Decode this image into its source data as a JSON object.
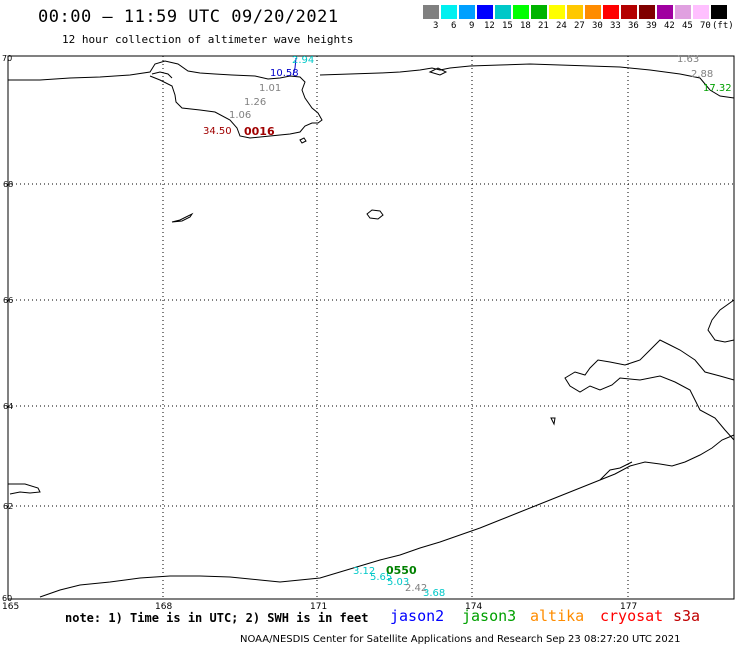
{
  "header": {
    "title": "00:00 — 11:59 UTC 09/20/2021",
    "subtitle": "12 hour collection of altimeter wave heights"
  },
  "legend": {
    "colors": [
      "#808080",
      "#00f0f0",
      "#00a0ff",
      "#0000ff",
      "#00c8c8",
      "#00ff00",
      "#00b400",
      "#ffff00",
      "#ffc800",
      "#ff8c00",
      "#ff0000",
      "#b40000",
      "#800000",
      "#a000a0",
      "#e0a0e0",
      "#ffc0ff",
      "#000000"
    ],
    "ticks": [
      "3",
      "6",
      "9",
      "12",
      "15",
      "18",
      "21",
      "24",
      "27",
      "30",
      "33",
      "36",
      "39",
      "42",
      "45",
      "70",
      "(ft)"
    ]
  },
  "map": {
    "lat_labels": [
      "70",
      "68",
      "66",
      "64",
      "62",
      "60"
    ],
    "lon_labels": [
      "165",
      "168",
      "171",
      "174",
      "177"
    ],
    "wave_labels": [
      {
        "text": "2.94",
        "color": "#00c8c8"
      },
      {
        "text": "10.58",
        "color": "#0000c8"
      },
      {
        "text": "1.01",
        "color": "#808080"
      },
      {
        "text": "1.26",
        "color": "#808080"
      },
      {
        "text": "1.06",
        "color": "#808080"
      },
      {
        "text": "34.50",
        "color": "#a00000"
      },
      {
        "text": "1.63",
        "color": "#808080"
      },
      {
        "text": "2.88",
        "color": "#808080"
      },
      {
        "text": "17.32",
        "color": "#00a000"
      },
      {
        "text": "3.12",
        "color": "#00c8c8"
      },
      {
        "text": "5.65",
        "color": "#00c8c8"
      },
      {
        "text": "5.03",
        "color": "#00c8c8"
      },
      {
        "text": "2.42",
        "color": "#808080"
      },
      {
        "text": "3.68",
        "color": "#00c8c8"
      }
    ],
    "pass_times": [
      {
        "text": "0016",
        "color": "#a00000"
      },
      {
        "text": "0550",
        "color": "#008000"
      }
    ]
  },
  "footer": {
    "note": "note: 1) Time is in UTC; 2) SWH is in feet",
    "satellites": [
      {
        "name": "jason2",
        "color": "#0000ff"
      },
      {
        "name": "jason3",
        "color": "#00a000"
      },
      {
        "name": "altika",
        "color": "#ff8c00"
      },
      {
        "name": "cryosat",
        "color": "#ff0000"
      },
      {
        "name": "s3a",
        "color": "#c00000"
      }
    ],
    "credit": "NOAA/NESDIS Center for Satellite Applications and Research    Sep 23 08:27:20 UTC 2021"
  }
}
